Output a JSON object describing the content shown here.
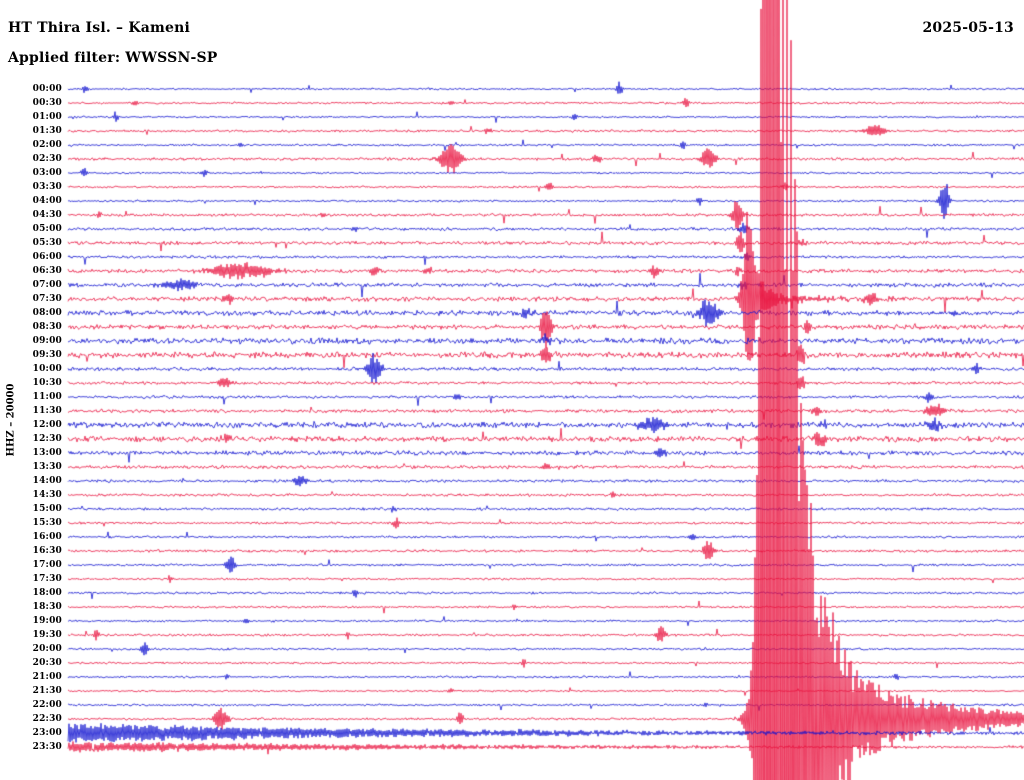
{
  "header": {
    "title": "HT Thira Isl. – Kameni",
    "date": "2025-05-13",
    "filter": "Applied filter: WWSSN-SP"
  },
  "y_axis_label": "HHZ – 20000",
  "colors": {
    "red": "#e8133f",
    "blue": "#0f12cf",
    "text": "#000000",
    "background": "#ffffff"
  },
  "chart_data": {
    "type": "line",
    "subtype": "helicorder-seismogram",
    "station": "HT Thira Isl. – Kameni",
    "channel": "HHZ",
    "scale": "20000",
    "date": "2025-05-13",
    "filter": "WWSSN-SP",
    "minutes_per_row": 30,
    "legend": "alternating blue (hour) and red (half-hour) traces",
    "main_event": {
      "row": "22:30",
      "minute_offset": 21.9,
      "approx_time": "22:52",
      "description": "Very large earthquake saturating the record (full-height red column); coda decays through 23:30"
    },
    "rows": [
      {
        "t": "00:00",
        "color": "blue",
        "noise": 0.8,
        "events": [
          {
            "m": 0.55,
            "a": 5,
            "w": 2
          },
          {
            "m": 17.3,
            "a": 7,
            "w": 2.5
          }
        ]
      },
      {
        "t": "00:30",
        "color": "red",
        "noise": 0.9,
        "events": [
          {
            "m": 2.1,
            "a": 4,
            "w": 2
          },
          {
            "m": 12,
            "a": 3,
            "w": 2.5
          },
          {
            "m": 19.4,
            "a": 6,
            "w": 2
          }
        ]
      },
      {
        "t": "01:00",
        "color": "blue",
        "noise": 0.8,
        "events": [
          {
            "m": 1.5,
            "a": 5,
            "w": 2
          },
          {
            "m": 15.9,
            "a": 4,
            "w": 2
          }
        ]
      },
      {
        "t": "01:30",
        "color": "red",
        "noise": 1.0,
        "events": [
          {
            "m": 13.2,
            "a": 4,
            "w": 2.5
          },
          {
            "m": 25.3,
            "a": 6,
            "w": 8
          }
        ]
      },
      {
        "t": "02:00",
        "color": "blue",
        "noise": 0.9,
        "events": [
          {
            "m": 5.4,
            "a": 3,
            "w": 2
          },
          {
            "m": 19.3,
            "a": 5,
            "w": 2
          }
        ]
      },
      {
        "t": "02:30",
        "color": "red",
        "noise": 1.2,
        "events": [
          {
            "m": 12,
            "a": 16,
            "w": 7
          },
          {
            "m": 16.6,
            "a": 6,
            "w": 3
          },
          {
            "m": 20.1,
            "a": 12,
            "w": 5
          }
        ]
      },
      {
        "t": "03:00",
        "color": "blue",
        "noise": 0.8,
        "events": [
          {
            "m": 0.5,
            "a": 6,
            "w": 2
          },
          {
            "m": 4.3,
            "a": 4,
            "w": 2
          }
        ]
      },
      {
        "t": "03:30",
        "color": "red",
        "noise": 0.9,
        "events": [
          {
            "m": 15.1,
            "a": 4,
            "w": 3
          },
          {
            "m": 22.5,
            "a": 4,
            "w": 2
          }
        ]
      },
      {
        "t": "04:00",
        "color": "blue",
        "noise": 0.9,
        "events": [
          {
            "m": 19.8,
            "a": 5,
            "w": 2
          },
          {
            "m": 27.5,
            "a": 26,
            "w": 3
          }
        ]
      },
      {
        "t": "04:30",
        "color": "red",
        "noise": 1.2,
        "events": [
          {
            "m": 1,
            "a": 4,
            "w": 2
          },
          {
            "m": 8,
            "a": 4,
            "w": 2
          },
          {
            "m": 21,
            "a": 16,
            "w": 4
          }
        ]
      },
      {
        "t": "05:00",
        "color": "blue",
        "noise": 1.3,
        "events": [
          {
            "m": 9,
            "a": 3,
            "w": 2
          },
          {
            "m": 21.2,
            "a": 6,
            "w": 3
          }
        ]
      },
      {
        "t": "05:30",
        "color": "red",
        "noise": 1.5,
        "events": [
          {
            "m": 21.1,
            "a": 10,
            "w": 3
          },
          {
            "m": 23,
            "a": 5,
            "w": 3
          }
        ]
      },
      {
        "t": "06:00",
        "color": "blue",
        "noise": 1.2,
        "events": [
          {
            "m": 21.3,
            "a": 5,
            "w": 2
          }
        ]
      },
      {
        "t": "06:30",
        "color": "red",
        "noise": 1.6,
        "events": [
          {
            "m": 5.4,
            "a": 9,
            "w": 22
          },
          {
            "m": 9.6,
            "a": 5,
            "w": 3
          },
          {
            "m": 11.3,
            "a": 4,
            "w": 3
          },
          {
            "m": 18.4,
            "a": 7,
            "w": 3
          },
          {
            "m": 21,
            "a": 6,
            "w": 2
          }
        ]
      },
      {
        "t": "07:00",
        "color": "blue",
        "noise": 1.8,
        "events": [
          {
            "m": 3.5,
            "a": 6,
            "w": 12
          },
          {
            "m": 21.2,
            "a": 5,
            "w": 3
          }
        ]
      },
      {
        "t": "07:30",
        "color": "red",
        "noise": 2.0,
        "events": [
          {
            "m": 5,
            "a": 5,
            "w": 4
          },
          {
            "type": "quake",
            "m": 21.3,
            "a": 110,
            "rise": 3,
            "tau1": 8,
            "a2": 8,
            "tau2": 60
          },
          {
            "m": 25.2,
            "a": 6,
            "w": 4
          }
        ]
      },
      {
        "t": "08:00",
        "color": "blue",
        "noise": 2.2,
        "events": [
          {
            "m": 14.4,
            "a": 5,
            "w": 4
          },
          {
            "m": 20.1,
            "a": 15,
            "w": 7
          },
          {
            "m": 27.8,
            "a": 4,
            "w": 3
          }
        ]
      },
      {
        "t": "08:30",
        "color": "red",
        "noise": 2.0,
        "events": [
          {
            "m": 15,
            "a": 22,
            "w": 4
          },
          {
            "m": 23.2,
            "a": 6,
            "w": 3
          }
        ]
      },
      {
        "t": "09:00",
        "color": "blue",
        "noise": 2.6,
        "events": [
          {
            "m": 15,
            "a": 5,
            "w": 5
          }
        ]
      },
      {
        "t": "09:30",
        "color": "red",
        "noise": 2.6,
        "events": [
          {
            "m": 15,
            "a": 8,
            "w": 4
          },
          {
            "m": 23,
            "a": 14,
            "w": 2.5
          }
        ]
      },
      {
        "t": "10:00",
        "color": "blue",
        "noise": 1.5,
        "events": [
          {
            "m": 9.6,
            "a": 16,
            "w": 5
          },
          {
            "m": 28.5,
            "a": 8,
            "w": 2
          }
        ]
      },
      {
        "t": "10:30",
        "color": "red",
        "noise": 1.3,
        "events": [
          {
            "m": 4.9,
            "a": 6,
            "w": 4
          },
          {
            "m": 23,
            "a": 10,
            "w": 2.5
          }
        ]
      },
      {
        "t": "11:00",
        "color": "blue",
        "noise": 1.2,
        "events": [
          {
            "m": 12.2,
            "a": 4,
            "w": 3
          },
          {
            "m": 27,
            "a": 5,
            "w": 3
          }
        ]
      },
      {
        "t": "11:30",
        "color": "red",
        "noise": 1.5,
        "events": [
          {
            "m": 23.5,
            "a": 6,
            "w": 3
          },
          {
            "m": 27.2,
            "a": 7,
            "w": 8
          }
        ]
      },
      {
        "t": "12:00",
        "color": "blue",
        "noise": 2.4,
        "events": [
          {
            "m": 18.3,
            "a": 7,
            "w": 10
          },
          {
            "m": 23.7,
            "a": 6,
            "w": 3
          },
          {
            "m": 27.2,
            "a": 8,
            "w": 5
          }
        ]
      },
      {
        "t": "12:30",
        "color": "red",
        "noise": 2.4,
        "events": [
          {
            "m": 5,
            "a": 5,
            "w": 4
          },
          {
            "m": 23.6,
            "a": 9,
            "w": 4
          }
        ]
      },
      {
        "t": "13:00",
        "color": "blue",
        "noise": 1.9,
        "events": [
          {
            "m": 18.6,
            "a": 6,
            "w": 5
          }
        ]
      },
      {
        "t": "13:30",
        "color": "red",
        "noise": 1.4,
        "events": [
          {
            "m": 15,
            "a": 4,
            "w": 3
          }
        ]
      },
      {
        "t": "14:00",
        "color": "blue",
        "noise": 1.2,
        "events": [
          {
            "m": 7.3,
            "a": 5,
            "w": 5
          }
        ]
      },
      {
        "t": "14:30",
        "color": "red",
        "noise": 1.1,
        "events": [
          {
            "m": 17.1,
            "a": 4,
            "w": 2
          }
        ]
      },
      {
        "t": "15:00",
        "color": "blue",
        "noise": 1.1,
        "events": [
          {
            "m": 10.2,
            "a": 4,
            "w": 2
          }
        ]
      },
      {
        "t": "15:30",
        "color": "red",
        "noise": 1.0,
        "events": [
          {
            "m": 10.3,
            "a": 6,
            "w": 2.5
          }
        ]
      },
      {
        "t": "16:00",
        "color": "blue",
        "noise": 1.0,
        "events": [
          {
            "m": 19.6,
            "a": 4,
            "w": 3
          }
        ]
      },
      {
        "t": "16:30",
        "color": "red",
        "noise": 1.1,
        "events": [
          {
            "m": 20.1,
            "a": 12,
            "w": 3.5
          }
        ]
      },
      {
        "t": "17:00",
        "color": "blue",
        "noise": 1.0,
        "events": [
          {
            "m": 5.1,
            "a": 9,
            "w": 3.5
          }
        ]
      },
      {
        "t": "17:30",
        "color": "red",
        "noise": 0.9,
        "events": [
          {
            "m": 3.2,
            "a": 4,
            "w": 2
          }
        ]
      },
      {
        "t": "18:00",
        "color": "blue",
        "noise": 1.0,
        "events": [
          {
            "m": 9,
            "a": 5,
            "w": 2
          }
        ]
      },
      {
        "t": "18:30",
        "color": "red",
        "noise": 0.9,
        "events": [
          {
            "m": 14,
            "a": 3,
            "w": 2
          }
        ]
      },
      {
        "t": "19:00",
        "color": "blue",
        "noise": 0.9,
        "events": [
          {
            "m": 5.6,
            "a": 3,
            "w": 2
          }
        ]
      },
      {
        "t": "19:30",
        "color": "red",
        "noise": 1.0,
        "events": [
          {
            "m": 0.9,
            "a": 6,
            "w": 2
          },
          {
            "m": 8.8,
            "a": 4,
            "w": 2
          },
          {
            "m": 18.6,
            "a": 10,
            "w": 3
          }
        ]
      },
      {
        "t": "20:00",
        "color": "blue",
        "noise": 0.9,
        "events": [
          {
            "m": 2.4,
            "a": 8,
            "w": 2.5
          }
        ]
      },
      {
        "t": "20:30",
        "color": "red",
        "noise": 0.9,
        "events": [
          {
            "m": 14.3,
            "a": 5,
            "w": 2
          }
        ]
      },
      {
        "t": "21:00",
        "color": "blue",
        "noise": 0.9,
        "events": [
          {
            "m": 5,
            "a": 3,
            "w": 2
          },
          {
            "m": 26,
            "a": 4,
            "w": 2
          }
        ]
      },
      {
        "t": "21:30",
        "color": "red",
        "noise": 0.8,
        "events": [
          {
            "m": 12,
            "a": 3,
            "w": 2
          }
        ]
      },
      {
        "t": "22:00",
        "color": "blue",
        "noise": 0.9,
        "events": [
          {
            "m": 20,
            "a": 3,
            "w": 2
          }
        ]
      },
      {
        "t": "22:30",
        "color": "red",
        "noise": 1.0,
        "events": [
          {
            "m": 4.8,
            "a": 12,
            "w": 5
          },
          {
            "m": 12.3,
            "a": 7,
            "w": 2.5
          },
          {
            "type": "quake",
            "m": 21.9,
            "a": 2500,
            "rise": 4,
            "tau1": 18,
            "a2": 85,
            "tau2": 110
          }
        ]
      },
      {
        "t": "23:00",
        "color": "blue",
        "noise": 1.2,
        "events": [
          {
            "type": "coda",
            "a0": 10,
            "tau": 350
          }
        ]
      },
      {
        "t": "23:30",
        "color": "red",
        "noise": 1.0,
        "events": [
          {
            "type": "coda",
            "a0": 5,
            "tau": 400
          }
        ]
      }
    ]
  }
}
